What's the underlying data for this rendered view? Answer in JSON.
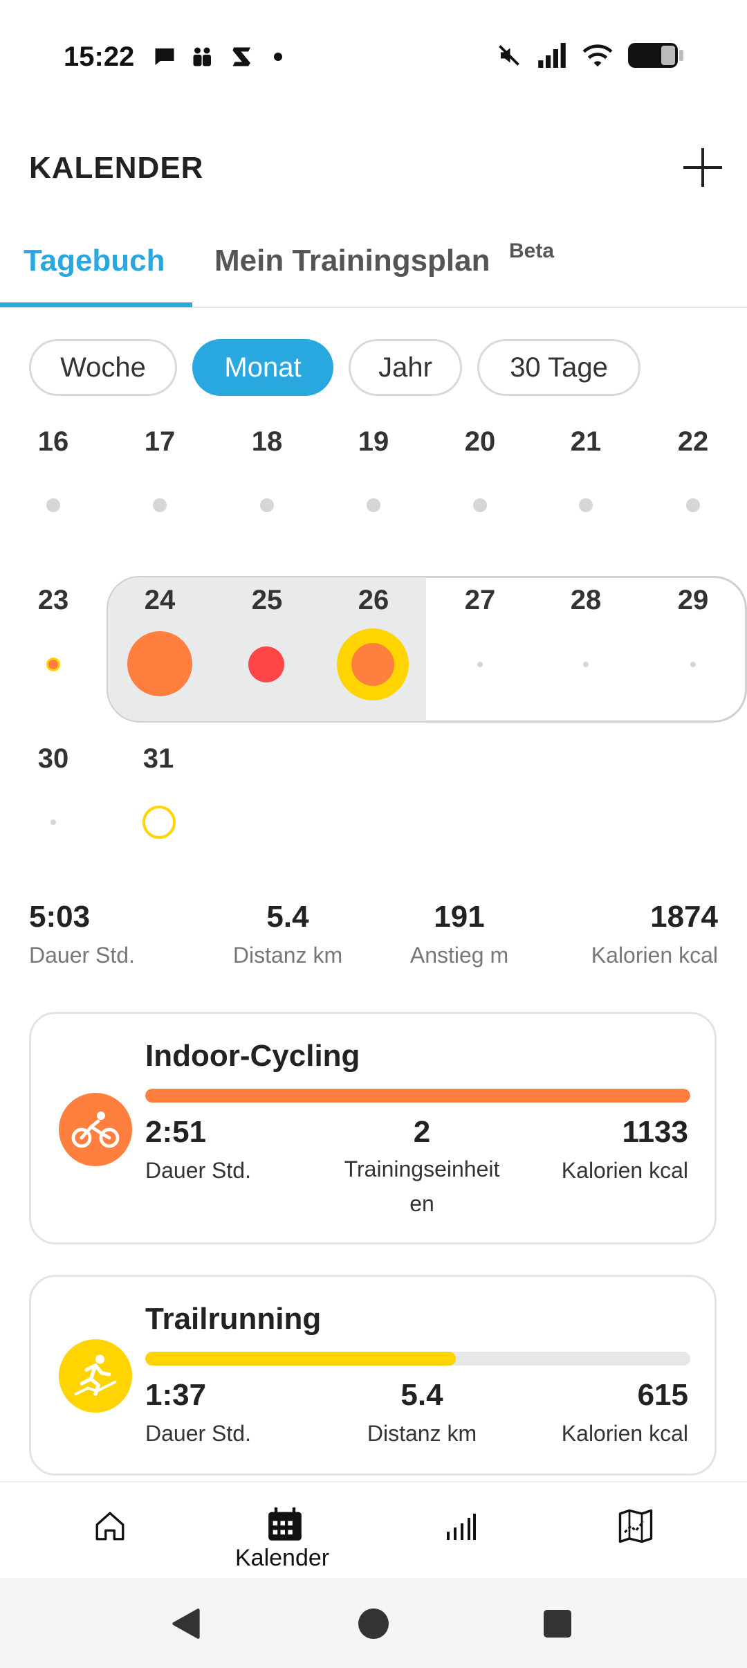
{
  "status_bar": {
    "time": "15:22"
  },
  "header": {
    "title": "KALENDER"
  },
  "tabs": [
    {
      "label": "Tagebuch",
      "active": true
    },
    {
      "label": "Mein Trainingsplan",
      "badge": "Beta",
      "active": false
    }
  ],
  "filters": [
    {
      "label": "Woche",
      "active": false
    },
    {
      "label": "Monat",
      "active": true
    },
    {
      "label": "Jahr",
      "active": false
    },
    {
      "label": "30 Tage",
      "active": false
    }
  ],
  "calendar": {
    "row1": [
      "16",
      "17",
      "18",
      "19",
      "20",
      "21",
      "22"
    ],
    "row2": [
      "23",
      "24",
      "25",
      "26",
      "27",
      "28",
      "29"
    ],
    "row3": [
      "30",
      "31"
    ]
  },
  "summary": [
    {
      "value": "5:03",
      "label": "Dauer Std."
    },
    {
      "value": "5.4",
      "label": "Distanz km"
    },
    {
      "value": "191",
      "label": "Anstieg m"
    },
    {
      "value": "1874",
      "label": "Kalorien kcal"
    }
  ],
  "cards": [
    {
      "title": "Indoor-Cycling",
      "color": "#ff7f3f",
      "icon": "cycling-icon",
      "bar_fraction": 1.0,
      "stats": [
        {
          "value": "2:51",
          "label": "Dauer Std."
        },
        {
          "value": "2",
          "label": "Trainingseinheit\nen"
        },
        {
          "value": "1133",
          "label": "Kalorien kcal"
        }
      ]
    },
    {
      "title": "Trailrunning",
      "color": "#ffd400",
      "icon": "trailrunning-icon",
      "bar_fraction": 0.57,
      "stats": [
        {
          "value": "1:37",
          "label": "Dauer Std."
        },
        {
          "value": "5.4",
          "label": "Distanz km"
        },
        {
          "value": "615",
          "label": "Kalorien kcal"
        }
      ]
    }
  ],
  "bottom_nav": {
    "active_label": "Kalender"
  },
  "colors": {
    "accent": "#29a8e0",
    "orange": "#ff7f3f",
    "red": "#ff4545",
    "yellow": "#ffd400"
  }
}
